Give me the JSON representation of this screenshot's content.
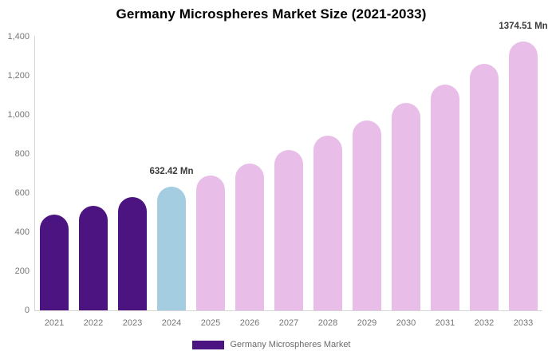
{
  "title": "Germany Microspheres Market Size (2021-2033)",
  "legend": {
    "label": "Germany Microspheres Market"
  },
  "colors": {
    "historical": "#4b1480",
    "base_year": "#a5cde2",
    "forecast": "#e8bee9",
    "legend_swatch": "#4b1480",
    "axis_line": "#d6d6d6",
    "axis_text": "#757575",
    "legend_text": "#6b6b6b",
    "annotation_text": "#3c3c3c",
    "title_text": "#000000"
  },
  "chart_data": {
    "type": "bar",
    "title": "Germany Microspheres Market Size (2021-2033)",
    "unit": "Mn",
    "categories": [
      "2021",
      "2022",
      "2023",
      "2024",
      "2025",
      "2026",
      "2027",
      "2028",
      "2029",
      "2030",
      "2031",
      "2032",
      "2033"
    ],
    "values": [
      489,
      533,
      580,
      632.42,
      689,
      752,
      819,
      893,
      973,
      1061,
      1157,
      1261,
      1374.51
    ],
    "bar_roles": [
      "historical",
      "historical",
      "historical",
      "base_year",
      "forecast",
      "forecast",
      "forecast",
      "forecast",
      "forecast",
      "forecast",
      "forecast",
      "forecast",
      "forecast"
    ],
    "series": [
      {
        "name": "Germany Microspheres Market",
        "values": [
          489,
          533,
          580,
          632.42,
          689,
          752,
          819,
          893,
          973,
          1061,
          1157,
          1261,
          1374.51
        ]
      }
    ],
    "xlabel": "",
    "ylabel": "",
    "ylim": [
      0,
      1400
    ],
    "yticks": [
      {
        "value": 0,
        "label": "0"
      },
      {
        "value": 200,
        "label": "200"
      },
      {
        "value": 400,
        "label": "400"
      },
      {
        "value": 600,
        "label": "600"
      },
      {
        "value": 800,
        "label": "800"
      },
      {
        "value": 1000,
        "label": "1,000"
      },
      {
        "value": 1200,
        "label": "1,200"
      },
      {
        "value": 1400,
        "label": "1,400"
      }
    ],
    "grid": false,
    "legend_position": "bottom",
    "annotations": [
      {
        "category": "2024",
        "text": "632.42 Mn"
      },
      {
        "category": "2033",
        "text": "1374.51 Mn"
      }
    ]
  }
}
